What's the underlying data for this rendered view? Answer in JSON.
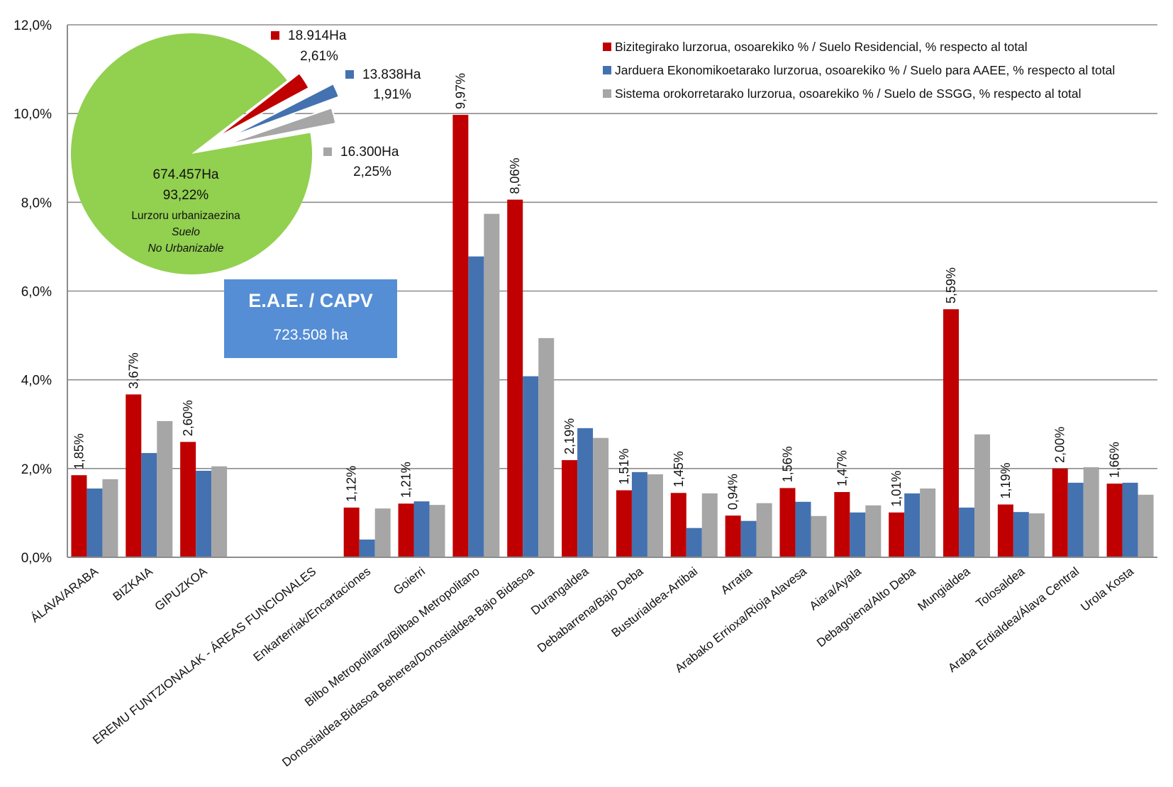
{
  "chart_data": {
    "type": "bar",
    "title": "",
    "xlabel": "",
    "ylabel": "",
    "ylim": [
      0,
      12
    ],
    "yticks": [
      "0,0%",
      "2,0%",
      "4,0%",
      "6,0%",
      "8,0%",
      "10,0%",
      "12,0%"
    ],
    "ytick_values": [
      0,
      2,
      4,
      6,
      8,
      10,
      12
    ],
    "grid": true,
    "legend_position": "top-right",
    "categories": [
      "ÁLAVA/ARABA",
      "BIZKAIA",
      "GIPUZKOA",
      "",
      "EREMU FUNTZIONALAK - ÁREAS FUNCIONALES",
      "Enkarterriak/Encartaciones",
      "Goierri",
      "Bilbo Metropolitarra/Bilbao Metropolitano",
      "Donostialdea-Bidasoa Beherea/Donostialdea-Bajo Bidasoa",
      "Durangaldea",
      "Debabarrena/Bajo Deba",
      "Busturialdea-Artibai",
      "Arratia",
      "Arabako Errioxa/Rioja Alavesa",
      "Aiara/Ayala",
      "Debagoiena/Alto Deba",
      "Mungialdea",
      "Tolosaldea",
      "Araba Erdialdea/Álava Central",
      "Urola Kosta"
    ],
    "series": [
      {
        "name": "Bizitegirako lurzorua, osoarekiko % / Suelo Residencial, % respecto al total",
        "color": "#C00000",
        "values": [
          1.85,
          3.67,
          2.6,
          null,
          null,
          1.12,
          1.21,
          9.97,
          8.06,
          2.19,
          1.51,
          1.45,
          0.94,
          1.56,
          1.47,
          1.01,
          5.59,
          1.19,
          2.0,
          1.66
        ],
        "labels": [
          "1,85%",
          "3,67%",
          "2,60%",
          "",
          "",
          "1,12%",
          "1,21%",
          "9,97%",
          "8,06%",
          "2,19%",
          "1,51%",
          "1,45%",
          "0,94%",
          "1,56%",
          "1,47%",
          "1,01%",
          "5,59%",
          "1,19%",
          "2,00%",
          "1,66%"
        ]
      },
      {
        "name": "Jarduera Ekonomikoetarako lurzorua, osoarekiko % / Suelo para AAEE, % respecto al total",
        "color": "#4472B0",
        "values": [
          1.55,
          2.35,
          1.95,
          null,
          null,
          0.4,
          1.26,
          6.78,
          4.08,
          2.91,
          1.92,
          0.66,
          0.82,
          1.25,
          1.01,
          1.44,
          1.12,
          1.02,
          1.68,
          1.68
        ]
      },
      {
        "name": "Sistema orokorretarako lurzorua, osoarekiko % / Suelo de SSGG, % respecto al total",
        "color": "#A6A6A6",
        "values": [
          1.76,
          3.07,
          2.05,
          null,
          null,
          1.1,
          1.18,
          7.74,
          4.94,
          2.69,
          1.87,
          1.44,
          1.22,
          0.93,
          1.17,
          1.55,
          2.77,
          0.99,
          2.03,
          1.41
        ]
      }
    ],
    "pie": {
      "type": "pie",
      "slices": [
        {
          "name": "Lurzoru urbanizaezina",
          "name_es_line1": "Suelo",
          "name_es_line2": "No Urbanizable",
          "area": "674.457Ha",
          "percent_label": "93,22%",
          "value": 93.22,
          "color": "#92D050"
        },
        {
          "name": "residencial",
          "area": "18.914Ha",
          "percent_label": "2,61%",
          "value": 2.61,
          "color": "#C00000"
        },
        {
          "name": "aaee",
          "area": "13.838Ha",
          "percent_label": "1,91%",
          "value": 1.91,
          "color": "#4472B0"
        },
        {
          "name": "ssgg",
          "area": "16.300Ha",
          "percent_label": "2,25%",
          "value": 2.25,
          "color": "#A6A6A6"
        }
      ]
    },
    "annotation": {
      "title": "E.A.E. / CAPV",
      "value": "723.508  ha",
      "color": "#558ED5"
    }
  }
}
